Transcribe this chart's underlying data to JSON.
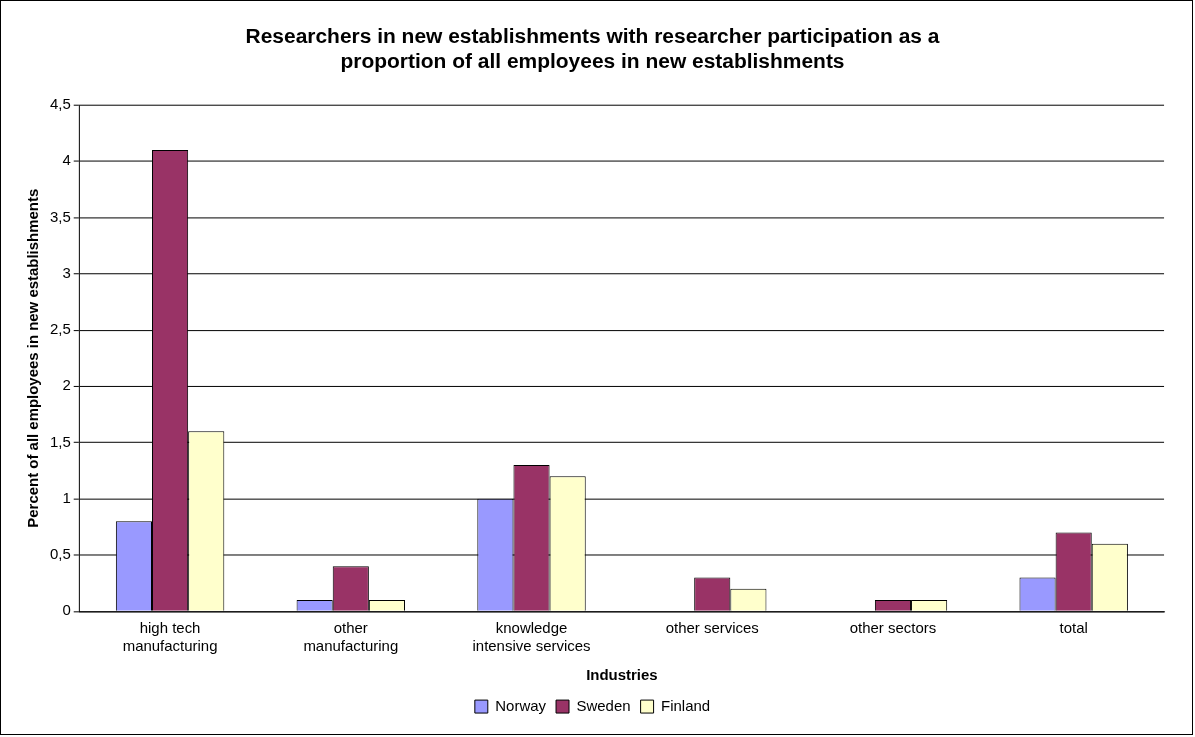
{
  "chart_data": {
    "type": "bar",
    "title": "Researchers in new establishments with researcher participation as a proportion of all employees in new establishments",
    "xlabel": "Industries",
    "ylabel": "Percent of all employees in new establishments",
    "categories": [
      "high tech manufacturing",
      "other manufacturing",
      "knowledge intensive services",
      "other services",
      "other sectors",
      "total"
    ],
    "series": [
      {
        "name": "Norway",
        "color": "#9999ff",
        "values": [
          0.8,
          0.1,
          1.0,
          0,
          0,
          0.3
        ]
      },
      {
        "name": "Sweden",
        "color": "#993366",
        "values": [
          4.1,
          0.4,
          1.3,
          0.3,
          0.1,
          0.7
        ]
      },
      {
        "name": "Finland",
        "color": "#ffffcc",
        "values": [
          1.6,
          0.1,
          1.2,
          0.2,
          0.1,
          0.6
        ]
      }
    ],
    "ylim": [
      0,
      4.5
    ],
    "yticks": [
      0,
      {
        "value": 0.5,
        "label": "0,5"
      },
      1,
      {
        "value": 1.5,
        "label": "1,5"
      },
      2,
      {
        "value": 2.5,
        "label": "2,5"
      },
      3,
      {
        "value": 3.5,
        "label": "3,5"
      },
      4,
      {
        "value": 4.5,
        "label": "4,5"
      }
    ],
    "grid": "y",
    "legend": "bottom"
  }
}
